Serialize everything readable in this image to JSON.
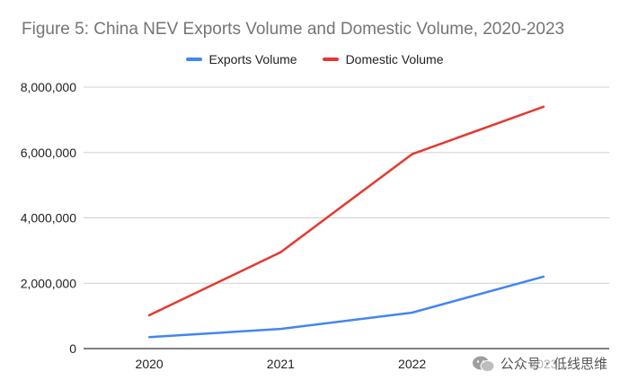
{
  "chart_data": {
    "type": "line",
    "title": "Figure 5: China NEV Exports Volume and Domestic Volume, 2020-2023",
    "categories": [
      "2020",
      "2021",
      "2022",
      "2023"
    ],
    "series": [
      {
        "name": "Exports Volume",
        "color": "#4285f4",
        "values": [
          350000,
          600000,
          1100000,
          2200000
        ]
      },
      {
        "name": "Domestic Volume",
        "color": "#e4392f",
        "values": [
          1020000,
          2950000,
          5950000,
          7400000
        ]
      }
    ],
    "ylim": [
      0,
      8000000
    ],
    "yticks": [
      0,
      2000000,
      4000000,
      6000000,
      8000000
    ],
    "ytick_labels": [
      "0",
      "2,000,000",
      "4,000,000",
      "6,000,000",
      "8,000,000"
    ],
    "grid": true,
    "legend_position": "top-center"
  },
  "watermark": {
    "text": "公众号 · 低线思维",
    "icon": "wechat-icon"
  }
}
